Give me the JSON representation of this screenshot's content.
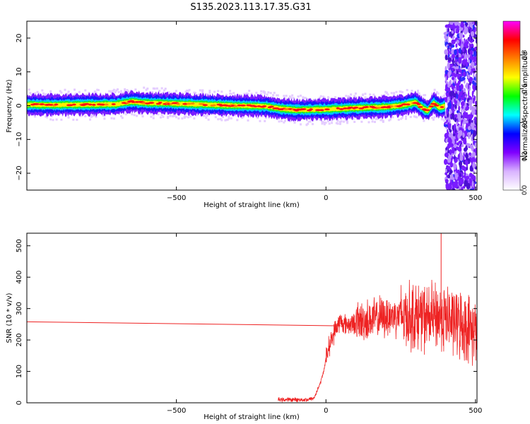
{
  "title": "S135.2023.113.17.35.G31",
  "chart_data": [
    {
      "type": "heatmap",
      "xlabel": "Height of straight line (km)",
      "ylabel": "Frequency (Hz)",
      "xlim": [
        -1000,
        505
      ],
      "ylim": [
        -25,
        25
      ],
      "xticks": [
        -500,
        0,
        500
      ],
      "yticks": [
        -20,
        -10,
        0,
        10,
        20
      ],
      "grid": false,
      "signal_track": {
        "x": [
          -1000,
          -900,
          -800,
          -700,
          -650,
          -600,
          -500,
          -400,
          -300,
          -200,
          -150,
          -100,
          0,
          100,
          200,
          250,
          300,
          320,
          340,
          360,
          380,
          395
        ],
        "frequency_hz": [
          0.3,
          0.2,
          0.3,
          0.4,
          1.2,
          0.8,
          0.6,
          0.3,
          0.0,
          -0.2,
          -0.9,
          -1.3,
          -1.1,
          -0.7,
          -0.4,
          0.0,
          1.0,
          -0.5,
          -1.5,
          0.8,
          -0.6,
          -0.2
        ]
      },
      "noise_onset_km": 400,
      "colorbar": {
        "label": "Normalized spectral amplitude",
        "range": [
          0.0,
          1.0
        ],
        "ticks": [
          0.0,
          0.2,
          0.4,
          0.6,
          0.8
        ],
        "colormap": [
          "#ffffff",
          "#d9b3ff",
          "#8000ff",
          "#0000ff",
          "#00ffff",
          "#00ff00",
          "#ffff00",
          "#ff8000",
          "#ff0000",
          "#ff00ff"
        ]
      }
    },
    {
      "type": "line",
      "xlabel": "Height of straight line (km)",
      "ylabel": "SNR (10 * v/v)",
      "xlim": [
        -1000,
        505
      ],
      "ylim": [
        0,
        540
      ],
      "xticks": [
        -500,
        0,
        500
      ],
      "yticks": [
        0,
        100,
        200,
        300,
        400,
        500
      ],
      "grid": false,
      "color": "#ee2222",
      "series": [
        {
          "x": [
            -1000,
            50
          ],
          "values": [
            258,
            245
          ]
        },
        {
          "x": [
            -160,
            -100,
            -60,
            -40,
            -20,
            -10,
            0,
            10,
            20,
            30,
            40,
            50,
            60,
            80,
            100,
            150,
            200,
            250,
            300,
            350,
            380,
            400,
            420,
            450,
            480,
            505
          ],
          "values": [
            10,
            10,
            10,
            15,
            60,
            90,
            140,
            180,
            205,
            230,
            250,
            260,
            250,
            250,
            255,
            265,
            275,
            280,
            275,
            270,
            275,
            270,
            260,
            250,
            235,
            230
          ]
        }
      ],
      "peak": {
        "x": 385,
        "value": 540
      }
    }
  ]
}
